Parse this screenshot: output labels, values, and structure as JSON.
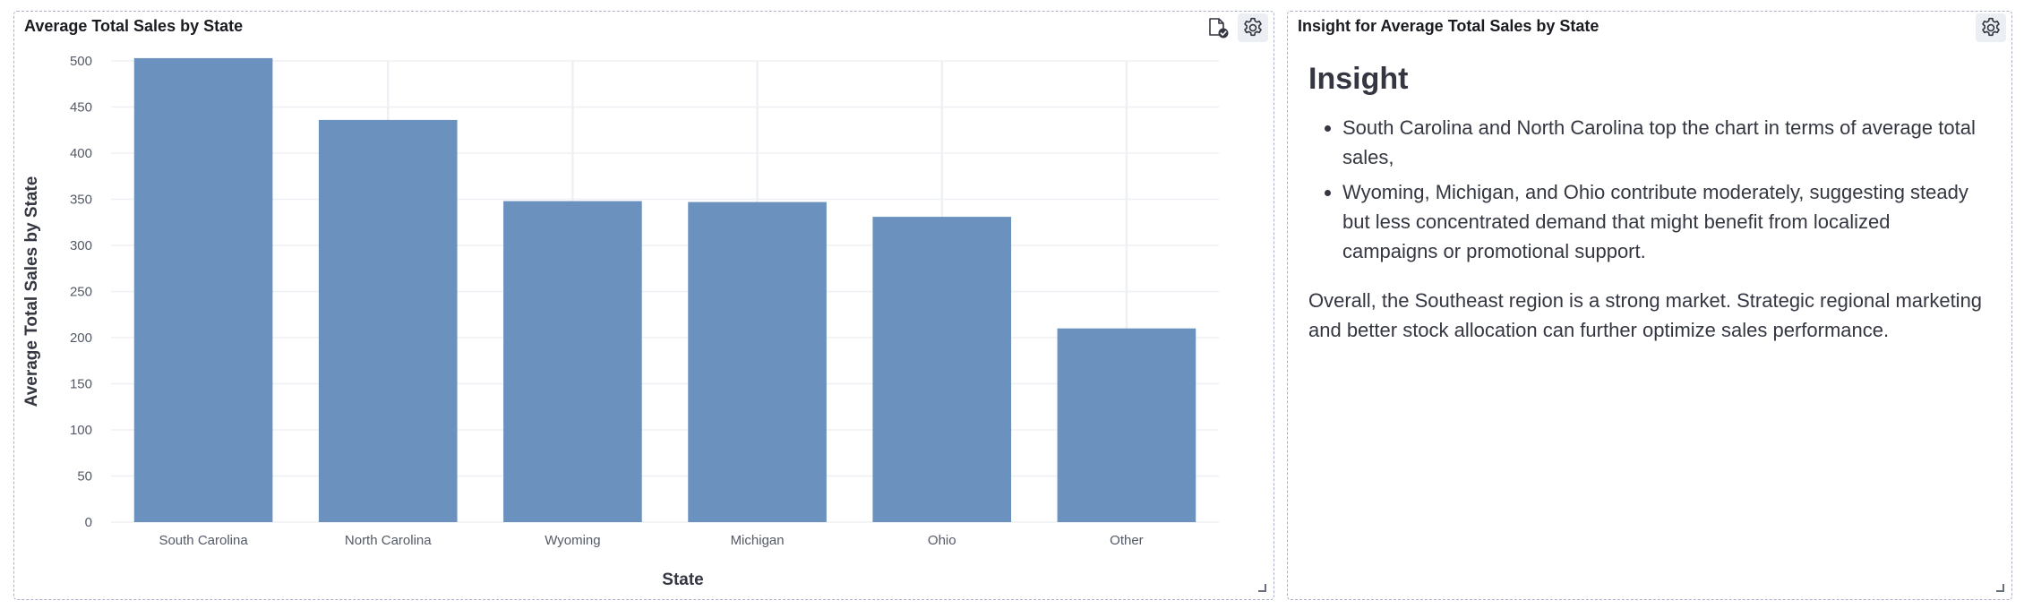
{
  "chart_panel": {
    "title": "Average Total Sales by State",
    "icons": [
      "file-check-icon",
      "gear-icon"
    ]
  },
  "insight_panel": {
    "title": "Insight for Average Total Sales by State",
    "heading": "Insight",
    "bullets": [
      "South Carolina and North Carolina top the chart in terms of average total sales,",
      "Wyoming, Michigan, and Ohio contribute moderately, suggesting steady but less concentrated demand that might benefit from localized campaigns or promotional support."
    ],
    "summary": "Overall, the Southeast region is a strong market. Strategic regional marketing and better stock allocation can further optimize sales performance.",
    "icons": [
      "gear-icon"
    ]
  },
  "chart_data": {
    "type": "bar",
    "title": "Average Total Sales by State",
    "xlabel": "State",
    "ylabel": "Average Total Sales by State",
    "categories": [
      "South Carolina",
      "North Carolina",
      "Wyoming",
      "Michigan",
      "Ohio",
      "Other"
    ],
    "values": [
      503,
      436,
      348,
      347,
      331,
      210
    ],
    "ylim": [
      0,
      500
    ],
    "yticks": [
      0,
      50,
      100,
      150,
      200,
      250,
      300,
      350,
      400,
      450,
      500
    ],
    "grid": true,
    "bar_color": "#6b92bf"
  }
}
